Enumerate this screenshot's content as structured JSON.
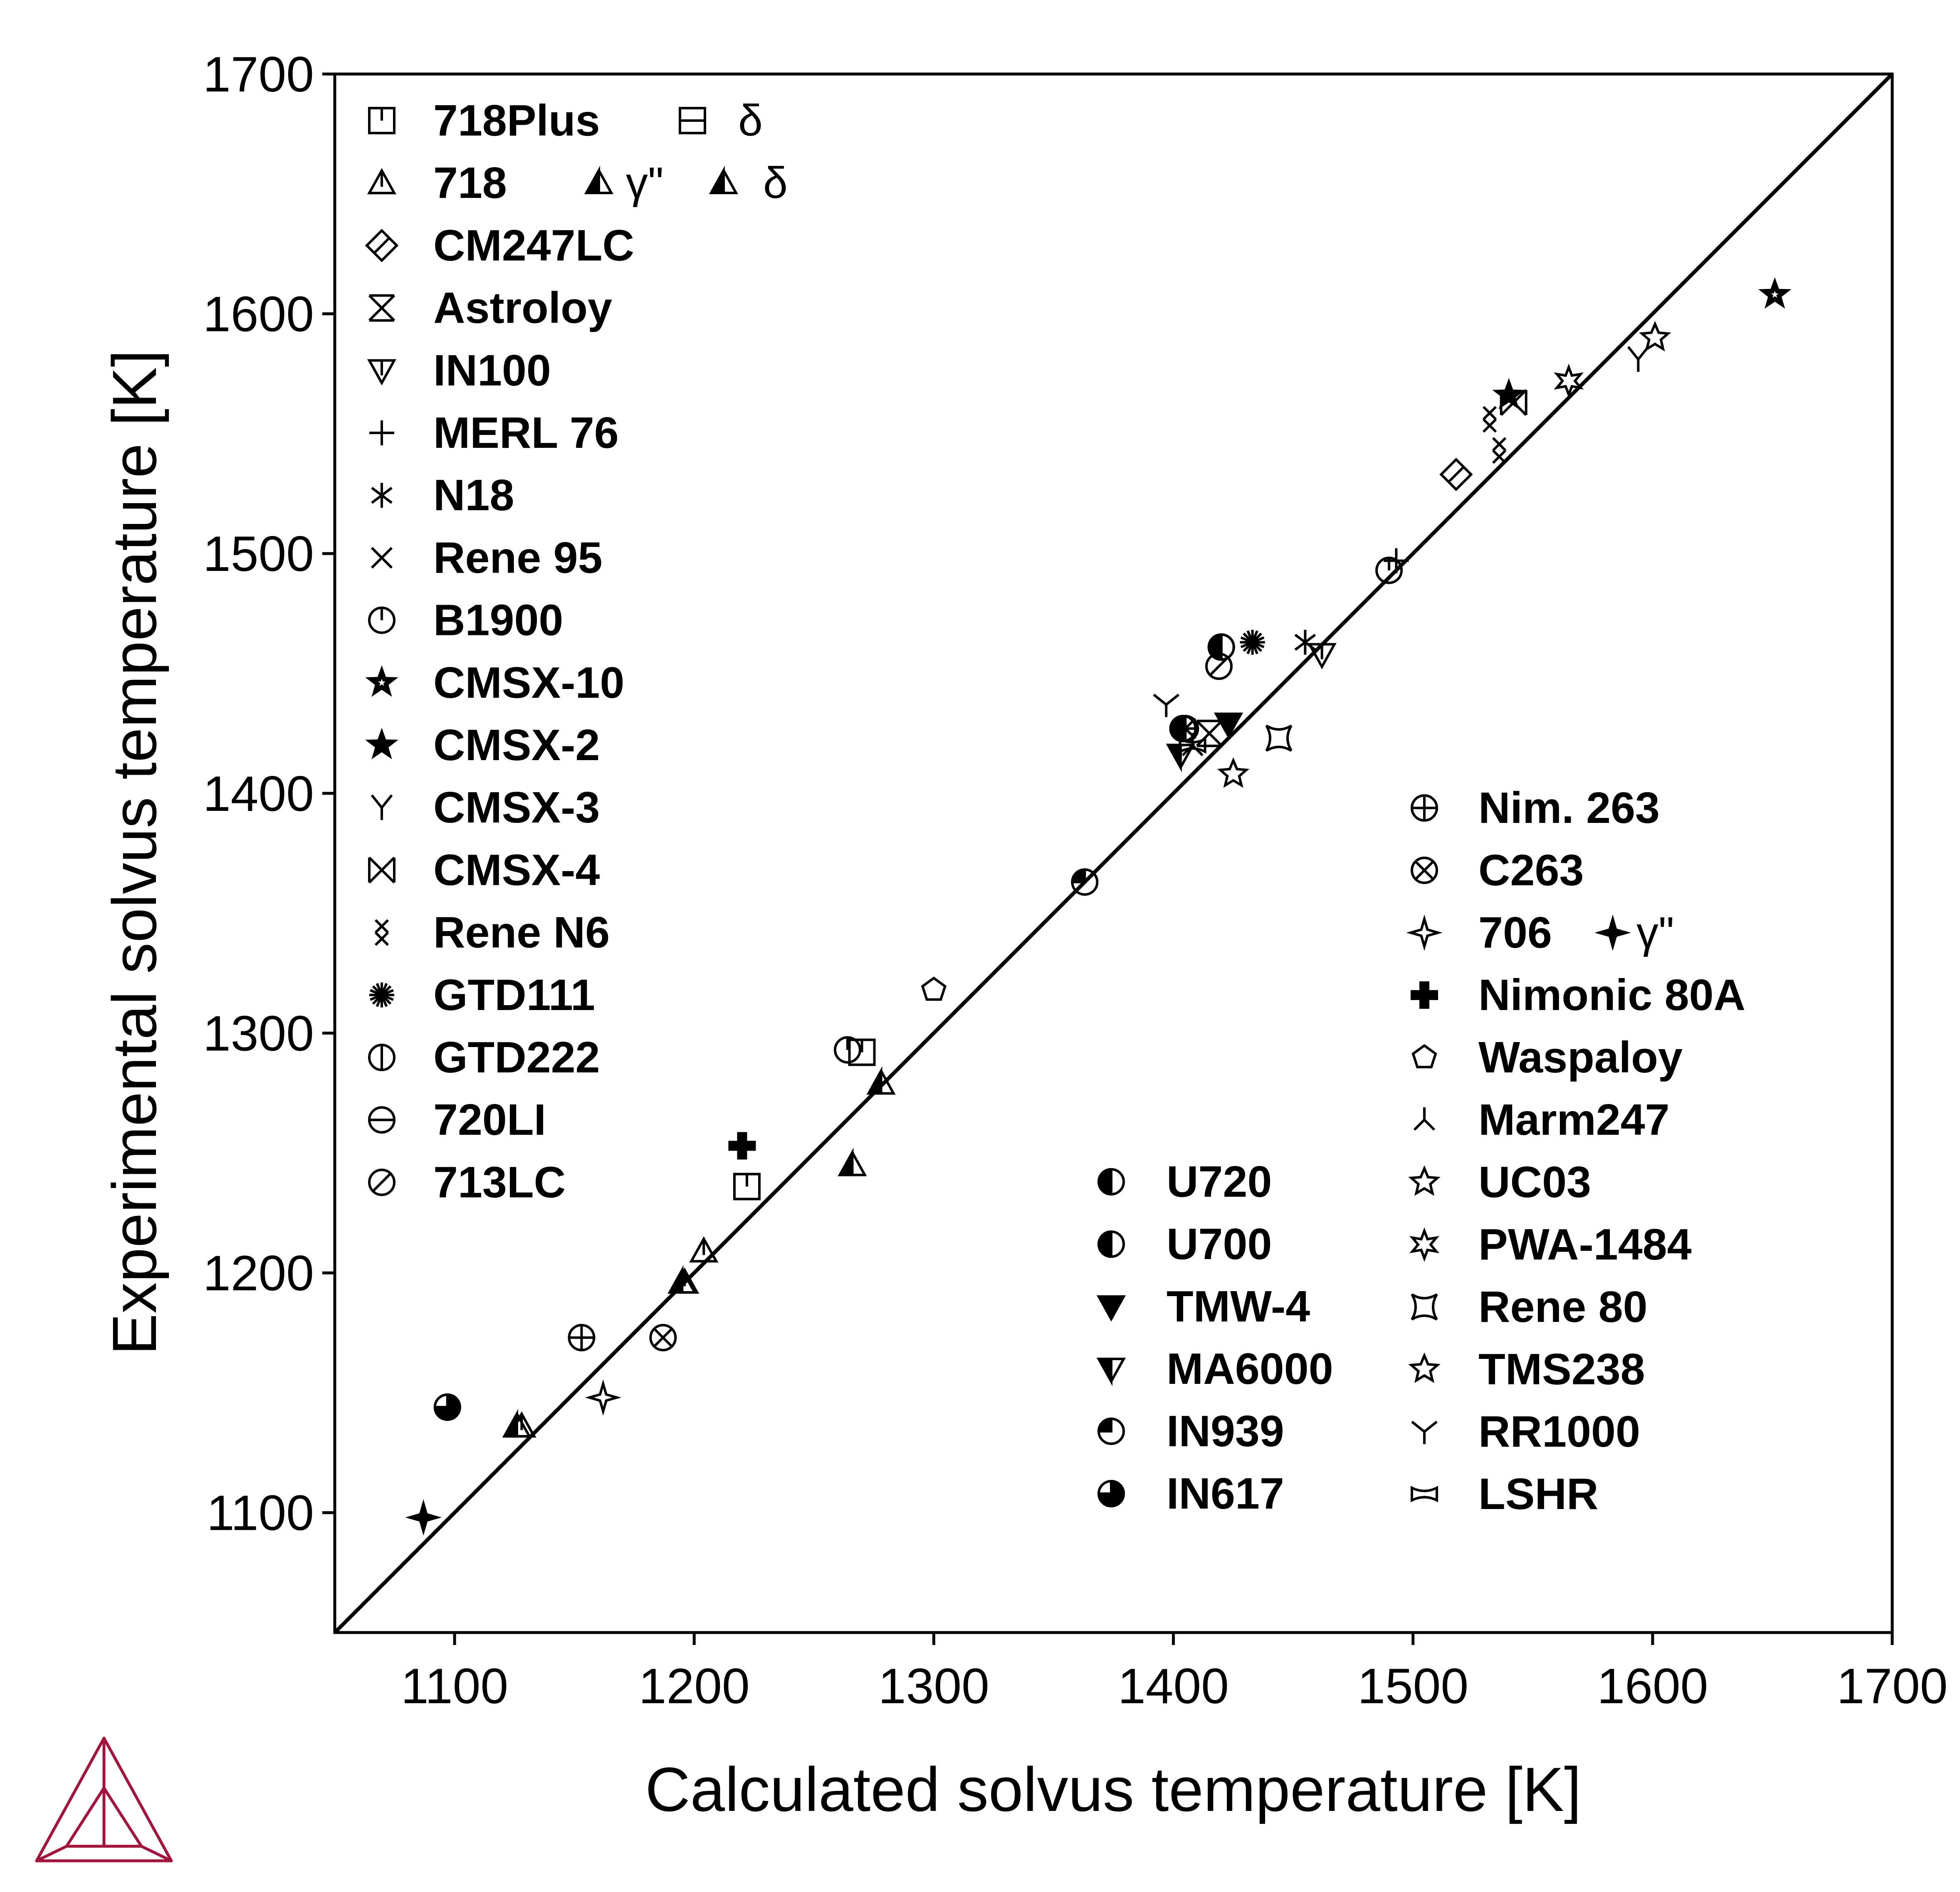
{
  "chart_data": {
    "type": "scatter",
    "xlabel": "Calculated solvus temperature [K]",
    "ylabel": "Experimental solvus temperature [K]",
    "xlim": [
      1050,
      1700
    ],
    "ylim": [
      1050,
      1700
    ],
    "xticks": [
      "1100",
      "1200",
      "1300",
      "1400",
      "1500",
      "1600",
      "1700"
    ],
    "yticks": [
      "1100",
      "1200",
      "1300",
      "1400",
      "1500",
      "1600",
      "1700"
    ],
    "grid": false,
    "reference_line": "y = x",
    "legend_placement": "inside, left column top-left; right columns bottom-right",
    "legend_sub": {
      "delta": "δ",
      "gamma_pp": "γ\""
    },
    "series": [
      {
        "name": "718Plus",
        "marker": "square-topline",
        "points": [
          [
            1270,
            1292
          ],
          [
            1222,
            1236
          ]
        ]
      },
      {
        "name": "718Plus δ",
        "marker": "square-hline",
        "points": []
      },
      {
        "name": "718",
        "marker": "triangle-vline",
        "points": [
          [
            1204,
            1209
          ],
          [
            1196,
            1196
          ],
          [
            1128,
            1136
          ]
        ]
      },
      {
        "name": "718 γ\"",
        "marker": "triangle-half",
        "points": [
          [
            1126,
            1136
          ],
          [
            1195,
            1196
          ],
          [
            1278,
            1279
          ]
        ]
      },
      {
        "name": "718 δ",
        "marker": "triangle-half2",
        "points": [
          [
            1266,
            1245
          ]
        ]
      },
      {
        "name": "CM247LC",
        "marker": "diamond-line",
        "points": [
          [
            1518,
            1533
          ]
        ]
      },
      {
        "name": "Astroloy",
        "marker": "hourglass-box",
        "points": [
          [
            1415,
            1425
          ]
        ]
      },
      {
        "name": "IN100",
        "marker": "triangle-down-line",
        "points": [
          [
            1462,
            1458
          ]
        ]
      },
      {
        "name": "MERL 76",
        "marker": "plus",
        "points": [
          [
            1493,
            1497
          ]
        ]
      },
      {
        "name": "N18",
        "marker": "asterisk",
        "points": [
          [
            1455,
            1463
          ]
        ]
      },
      {
        "name": "Rene 95",
        "marker": "cross",
        "points": [
          [
            1405,
            1427
          ]
        ]
      },
      {
        "name": "B1900",
        "marker": "circle-topline",
        "points": [
          [
            1490,
            1493
          ],
          [
            1264,
            1293
          ]
        ]
      },
      {
        "name": "CMSX-10",
        "marker": "star-inner",
        "points": [
          [
            1651,
            1608
          ]
        ]
      },
      {
        "name": "CMSX-2",
        "marker": "star-filled",
        "points": [
          [
            1540,
            1566
          ]
        ]
      },
      {
        "name": "CMSX-3",
        "marker": "y-shape",
        "points": [
          [
            1594,
            1581
          ]
        ]
      },
      {
        "name": "CMSX-4",
        "marker": "bowtie-box",
        "points": [
          [
            1542,
            1563
          ]
        ]
      },
      {
        "name": "Rene N6",
        "marker": "double-x",
        "points": [
          [
            1532,
            1556
          ],
          [
            1536,
            1543
          ]
        ]
      },
      {
        "name": "GTD111",
        "marker": "burst",
        "points": [
          [
            1433,
            1463
          ]
        ]
      },
      {
        "name": "GTD222",
        "marker": "circle-vline",
        "points": [
          [
            1420,
            1461
          ]
        ]
      },
      {
        "name": "720LI",
        "marker": "circle-hline",
        "points": [
          [
            1404,
            1427
          ]
        ]
      },
      {
        "name": "713LC",
        "marker": "circle-slash",
        "points": [
          [
            1419,
            1453
          ]
        ]
      },
      {
        "name": "Nim. 263",
        "marker": "circle-plus",
        "points": [
          [
            1153,
            1173
          ]
        ]
      },
      {
        "name": "C263",
        "marker": "circle-x",
        "points": [
          [
            1187,
            1173
          ]
        ]
      },
      {
        "name": "706",
        "marker": "star4",
        "points": [
          [
            1162,
            1148
          ]
        ]
      },
      {
        "name": "706 γ\"",
        "marker": "star4-filled",
        "points": [
          [
            1087,
            1098
          ]
        ]
      },
      {
        "name": "Nimonic 80A",
        "marker": "cross-bold",
        "points": [
          [
            1220,
            1253
          ]
        ]
      },
      {
        "name": "Waspaloy",
        "marker": "pentagon",
        "points": [
          [
            1300,
            1318
          ]
        ]
      },
      {
        "name": "Marm247",
        "marker": "inv-y",
        "points": [
          [
            1408,
            1420
          ]
        ]
      },
      {
        "name": "UC03",
        "marker": "star-hollow",
        "points": [
          [
            1425,
            1408
          ]
        ]
      },
      {
        "name": "PWA-1484",
        "marker": "star-hollow2",
        "points": [
          [
            1565,
            1572
          ]
        ]
      },
      {
        "name": "Rene 80",
        "marker": "concave-square",
        "points": [
          [
            1444,
            1423
          ]
        ]
      },
      {
        "name": "TMS238",
        "marker": "star-hollow3",
        "points": [
          [
            1601,
            1590
          ]
        ]
      },
      {
        "name": "RR1000",
        "marker": "arrow-y",
        "points": [
          [
            1397,
            1437
          ]
        ]
      },
      {
        "name": "LSHR",
        "marker": "bowtie-h",
        "points": [
          [
            1408,
            1420
          ]
        ]
      },
      {
        "name": "U720",
        "marker": "circle-quarter",
        "points": [
          [
            1405,
            1427
          ]
        ]
      },
      {
        "name": "U700",
        "marker": "circle-half-left",
        "points": [
          [
            1420,
            1461
          ]
        ]
      },
      {
        "name": "TMW-4",
        "marker": "tri-down-filled",
        "points": [
          [
            1423,
            1429
          ]
        ]
      },
      {
        "name": "MA6000",
        "marker": "tri-down-half",
        "points": [
          [
            1403,
            1416
          ]
        ]
      },
      {
        "name": "IN939",
        "marker": "circle-quarter2",
        "points": [
          [
            1363,
            1363
          ]
        ]
      },
      {
        "name": "IN617",
        "marker": "circle-3q",
        "points": [
          [
            1097,
            1144
          ]
        ]
      }
    ]
  }
}
